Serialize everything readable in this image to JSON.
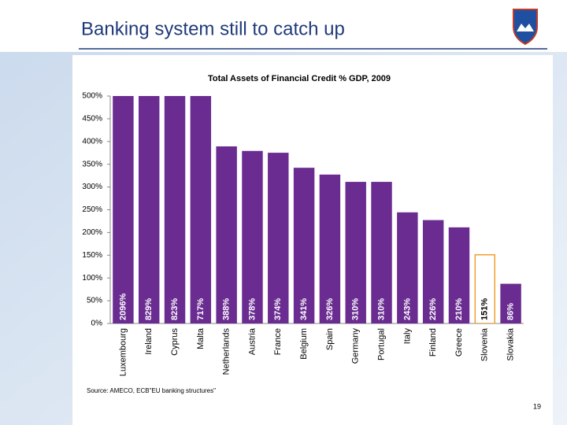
{
  "slide_title": "Banking system still to catch up",
  "source": "Source: AMECO, ECB\"EU banking structures\"",
  "page_number": "19",
  "chart_data": {
    "type": "bar",
    "title": "Total Assets of Financial Credit % GDP, 2009",
    "categories": [
      "Luxembourg",
      "Ireland",
      "Cyprus",
      "Malta",
      "Netherlands",
      "Austria",
      "France",
      "Belgium",
      "Spain",
      "Germany",
      "Portugal",
      "Italy",
      "Finland",
      "Greece",
      "Slovenia",
      "Slovakia"
    ],
    "values": [
      2096,
      829,
      823,
      717,
      388,
      378,
      374,
      341,
      326,
      310,
      310,
      243,
      226,
      210,
      151,
      86
    ],
    "value_labels": [
      "2096%",
      "829%",
      "823%",
      "717%",
      "388%",
      "378%",
      "374%",
      "341%",
      "326%",
      "310%",
      "310%",
      "243%",
      "226%",
      "210%",
      "151%",
      "86%"
    ],
    "colors": [
      "#6a2c91",
      "#6a2c91",
      "#6a2c91",
      "#6a2c91",
      "#6a2c91",
      "#6a2c91",
      "#6a2c91",
      "#6a2c91",
      "#6a2c91",
      "#6a2c91",
      "#6a2c91",
      "#6a2c91",
      "#6a2c91",
      "#6a2c91",
      "#ffffff",
      "#6a2c91"
    ],
    "border_colors": [
      "#6a2c91",
      "#6a2c91",
      "#6a2c91",
      "#6a2c91",
      "#6a2c91",
      "#6a2c91",
      "#6a2c91",
      "#6a2c91",
      "#6a2c91",
      "#6a2c91",
      "#6a2c91",
      "#6a2c91",
      "#6a2c91",
      "#6a2c91",
      "#f0a030",
      "#6a2c91"
    ],
    "ylim": [
      0,
      500
    ],
    "yticks": [
      {
        "value": 0,
        "label": "0%"
      },
      {
        "value": 50,
        "label": "50%"
      },
      {
        "value": 100,
        "label": "100%"
      },
      {
        "value": 150,
        "label": "150%"
      },
      {
        "value": 200,
        "label": "200%"
      },
      {
        "value": 250,
        "label": "250%"
      },
      {
        "value": 300,
        "label": "300%"
      },
      {
        "value": 350,
        "label": "350%"
      },
      {
        "value": 400,
        "label": "400%"
      },
      {
        "value": 450,
        "label": "450%"
      },
      {
        "value": 500,
        "label": "500%"
      }
    ],
    "grid": false
  }
}
